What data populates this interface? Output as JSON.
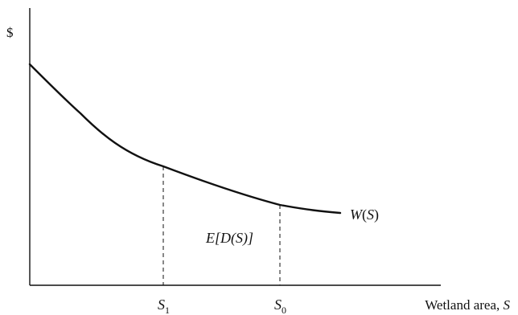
{
  "figure": {
    "y_axis_label": "$",
    "x_axis_label_text": "Wetland area, ",
    "x_axis_label_var": "S",
    "curve_label_fn": "W",
    "curve_label_open": "(",
    "curve_label_var": "S",
    "curve_label_close": ")",
    "region_label": "E[D(S)]",
    "tick_s1_base": "S",
    "tick_s1_sub": "1",
    "tick_s0_base": "S",
    "tick_s0_sub": "0"
  },
  "colors": {
    "ink": "#111111",
    "background": "#ffffff"
  }
}
